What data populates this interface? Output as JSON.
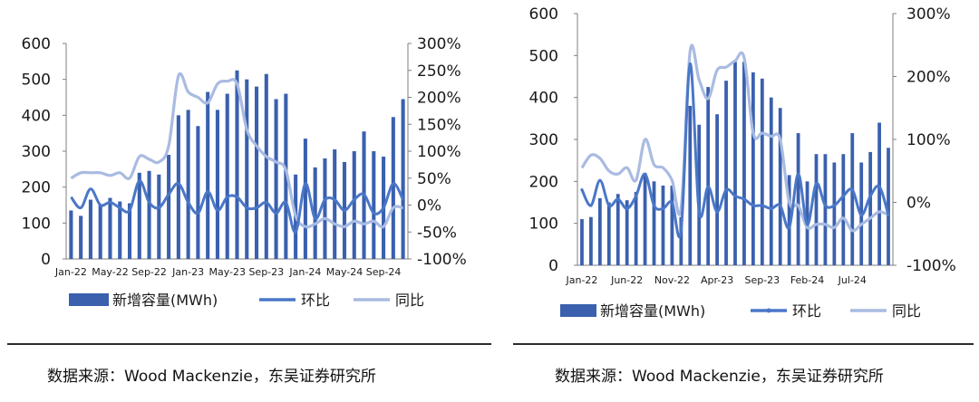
{
  "colors": {
    "bar": "#3a60ae",
    "mom_line": "#4a77c8",
    "yoy_line": "#a9bbe2",
    "rule": "#2b2b2b"
  },
  "legend": {
    "bar": "新增容量(MWh)",
    "mom": "环比",
    "yoy": "同比"
  },
  "source_left": "数据来源：Wood Mackenzie，东吴证券研究所",
  "source_right": "数据来源：Wood Mackenzie，东吴证券研究所",
  "chart_data": [
    {
      "type": "bar",
      "title": "",
      "xlabel": "",
      "ylabel": "",
      "ylim": [
        0,
        600
      ],
      "y2lim": [
        -100,
        300
      ],
      "yticks": [
        "0",
        "100",
        "200",
        "300",
        "400",
        "500",
        "600"
      ],
      "y2ticks": [
        "-100%",
        "-50%",
        "0%",
        "50%",
        "100%",
        "150%",
        "200%",
        "250%",
        "300%"
      ],
      "grid": false,
      "legend_position": "bottom",
      "xtick_labels": [
        {
          "index": 0,
          "label": "Jan-22"
        },
        {
          "index": 4,
          "label": "May-22"
        },
        {
          "index": 8,
          "label": "Sep-22"
        },
        {
          "index": 12,
          "label": "Jan-23"
        },
        {
          "index": 16,
          "label": "May-23"
        },
        {
          "index": 20,
          "label": "Sep-23"
        },
        {
          "index": 24,
          "label": "Jan-24"
        },
        {
          "index": 28,
          "label": "May-24"
        },
        {
          "index": 32,
          "label": "Sep-24"
        }
      ],
      "categories": [
        "Jan-22",
        "Feb-22",
        "Mar-22",
        "Apr-22",
        "May-22",
        "Jun-22",
        "Jul-22",
        "Aug-22",
        "Sep-22",
        "Oct-22",
        "Nov-22",
        "Dec-22",
        "Jan-23",
        "Feb-23",
        "Mar-23",
        "Apr-23",
        "May-23",
        "Jun-23",
        "Jul-23",
        "Aug-23",
        "Sep-23",
        "Oct-23",
        "Nov-23",
        "Dec-23",
        "Jan-24",
        "Feb-24",
        "Mar-24",
        "Apr-24",
        "May-24",
        "Jun-24",
        "Jul-24",
        "Aug-24",
        "Sep-24",
        "Oct-24",
        "Nov-24"
      ],
      "series": [
        {
          "name": "新增容量(MWh)",
          "kind": "bar",
          "axis": "left",
          "values": [
            135,
            120,
            165,
            150,
            170,
            160,
            155,
            240,
            245,
            235,
            290,
            400,
            415,
            370,
            465,
            415,
            460,
            525,
            500,
            480,
            515,
            445,
            460,
            235,
            335,
            255,
            280,
            305,
            270,
            300,
            355,
            300,
            285,
            395,
            445
          ]
        },
        {
          "name": "环比",
          "kind": "line",
          "axis": "right",
          "values": [
            15,
            -5,
            30,
            0,
            5,
            -5,
            -10,
            45,
            5,
            -5,
            20,
            40,
            5,
            -15,
            25,
            -10,
            15,
            15,
            -5,
            -5,
            5,
            -15,
            5,
            -50,
            40,
            -25,
            10,
            10,
            -10,
            10,
            20,
            -15,
            -5,
            40,
            10
          ]
        },
        {
          "name": "同比",
          "kind": "line",
          "axis": "right",
          "values": [
            50,
            60,
            60,
            60,
            55,
            60,
            50,
            90,
            85,
            80,
            110,
            240,
            210,
            200,
            190,
            225,
            230,
            225,
            140,
            110,
            90,
            80,
            65,
            -20,
            -40,
            -35,
            -25,
            -35,
            -40,
            -30,
            -35,
            -30,
            -40,
            -5,
            -5
          ]
        }
      ]
    },
    {
      "type": "bar",
      "title": "",
      "xlabel": "",
      "ylabel": "",
      "ylim": [
        0,
        600
      ],
      "y2lim": [
        -100,
        300
      ],
      "yticks": [
        "0",
        "100",
        "200",
        "300",
        "400",
        "500",
        "600"
      ],
      "y2ticks": [
        "-100%",
        "0%",
        "100%",
        "200%",
        "300%"
      ],
      "grid": false,
      "legend_position": "bottom",
      "xtick_labels": [
        {
          "index": 0,
          "label": "Jan-22"
        },
        {
          "index": 5,
          "label": "Jun-22"
        },
        {
          "index": 10,
          "label": "Nov-22"
        },
        {
          "index": 15,
          "label": "Apr-23"
        },
        {
          "index": 20,
          "label": "Sep-23"
        },
        {
          "index": 25,
          "label": "Feb-24"
        },
        {
          "index": 30,
          "label": "Jul-24"
        }
      ],
      "categories": [
        "Jan-22",
        "Feb-22",
        "Mar-22",
        "Apr-22",
        "May-22",
        "Jun-22",
        "Jul-22",
        "Aug-22",
        "Sep-22",
        "Oct-22",
        "Nov-22",
        "Dec-22",
        "Jan-23",
        "Feb-23",
        "Mar-23",
        "Apr-23",
        "May-23",
        "Jun-23",
        "Jul-23",
        "Aug-23",
        "Sep-23",
        "Oct-23",
        "Nov-23",
        "Dec-23",
        "Jan-24",
        "Feb-24",
        "Mar-24",
        "Apr-24",
        "May-24",
        "Jun-24",
        "Jul-24",
        "Aug-24",
        "Sep-24",
        "Oct-24",
        "Nov-24"
      ],
      "series": [
        {
          "name": "新增容量(MWh)",
          "kind": "bar",
          "axis": "left",
          "values": [
            110,
            115,
            160,
            150,
            170,
            155,
            175,
            220,
            200,
            190,
            190,
            115,
            380,
            335,
            425,
            360,
            440,
            485,
            485,
            460,
            445,
            400,
            375,
            215,
            315,
            200,
            265,
            265,
            245,
            265,
            315,
            245,
            270,
            340,
            280
          ]
        },
        {
          "name": "环比",
          "kind": "line",
          "axis": "right",
          "values": [
            20,
            -5,
            35,
            -5,
            5,
            -10,
            10,
            45,
            -5,
            -10,
            0,
            -45,
            220,
            -15,
            25,
            -15,
            20,
            10,
            5,
            -5,
            -5,
            -10,
            -5,
            -40,
            45,
            -35,
            30,
            -5,
            -5,
            10,
            20,
            -20,
            10,
            25,
            -20
          ]
        },
        {
          "name": "同比",
          "kind": "line",
          "axis": "right",
          "values": [
            55,
            75,
            70,
            50,
            45,
            55,
            35,
            100,
            60,
            55,
            35,
            -10,
            240,
            195,
            165,
            210,
            215,
            225,
            230,
            110,
            110,
            105,
            100,
            0,
            -5,
            -40,
            -35,
            -35,
            -40,
            -25,
            -45,
            -35,
            -25,
            -15,
            -20
          ]
        }
      ]
    }
  ]
}
